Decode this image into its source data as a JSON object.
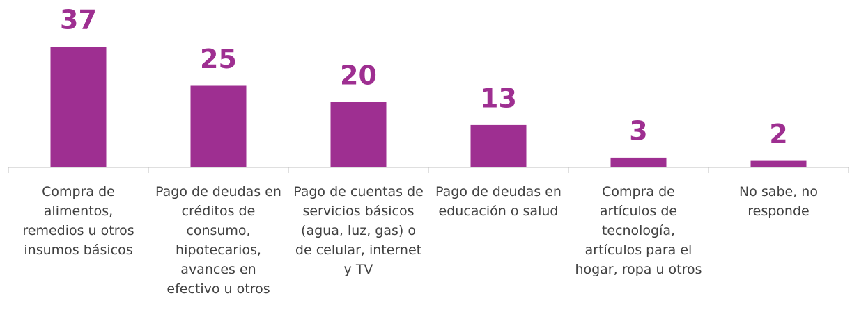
{
  "chart_data": {
    "type": "bar",
    "categories": [
      "Compra de alimentos, remedios u otros insumos básicos",
      "Pago de deudas en créditos de consumo, hipotecarios, avances en efectivo u otros",
      "Pago de cuentas de servicios básicos (agua, luz, gas) o de celular, internet y TV",
      "Pago de deudas en educación o salud",
      "Compra de artículos de tecnología, artículos para el hogar, ropa u otros",
      "No sabe, no responde"
    ],
    "values": [
      37,
      25,
      20,
      13,
      3,
      2
    ],
    "color": "#9e2f91"
  }
}
